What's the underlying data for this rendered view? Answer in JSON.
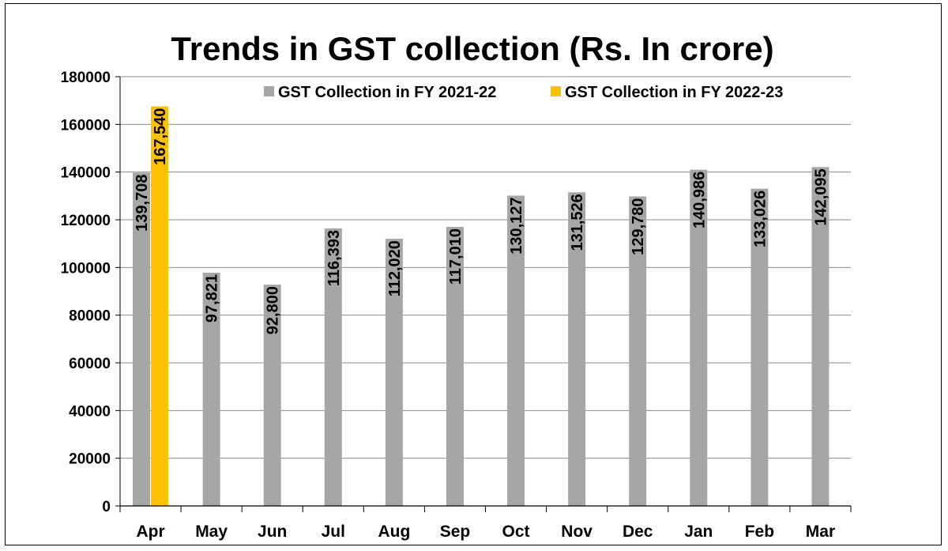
{
  "chart_data": {
    "type": "bar",
    "title": "Trends in GST collection (Rs. In crore)",
    "categories": [
      "Apr",
      "May",
      "Jun",
      "Jul",
      "Aug",
      "Sep",
      "Oct",
      "Nov",
      "Dec",
      "Jan",
      "Feb",
      "Mar"
    ],
    "series": [
      {
        "name": "GST Collection in FY 2021-22",
        "color": "#a6a6a6",
        "values": [
          139708,
          97821,
          92800,
          116393,
          112020,
          117010,
          130127,
          131526,
          129780,
          140986,
          133026,
          142095
        ],
        "labels": [
          "139,708",
          "97,821",
          "92,800",
          "116,393",
          "112,020",
          "117,010",
          "130,127",
          "131,526",
          "129,780",
          "140,986",
          "133,026",
          "142,095"
        ]
      },
      {
        "name": "GST Collection in FY 2022-23",
        "color": "#ffc000",
        "values": [
          167540,
          null,
          null,
          null,
          null,
          null,
          null,
          null,
          null,
          null,
          null,
          null
        ],
        "labels": [
          "167,540",
          null,
          null,
          null,
          null,
          null,
          null,
          null,
          null,
          null,
          null,
          null
        ]
      }
    ],
    "ylim": [
      0,
      180000
    ],
    "yticks": [
      "0",
      "20000",
      "40000",
      "60000",
      "80000",
      "100000",
      "120000",
      "140000",
      "160000",
      "180000"
    ],
    "grid": true,
    "legend_position": "top"
  }
}
